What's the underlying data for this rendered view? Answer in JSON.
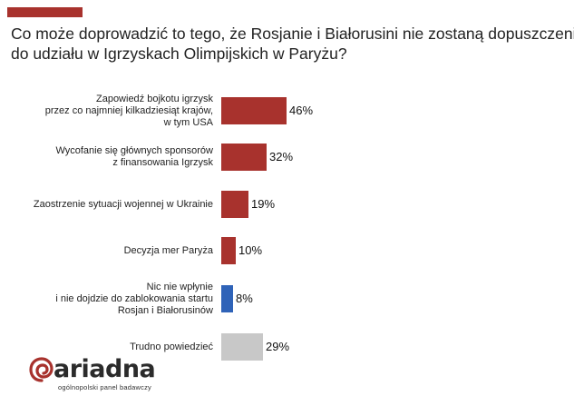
{
  "header": {
    "title_lines": [
      "Co może doprowadzić to tego, że Rosjanie i Białorusini nie zostaną dopuszczeni",
      "do udziału w Igrzyskach Olimpijskich w Paryżu?"
    ]
  },
  "colors": {
    "accent": "#a8322d",
    "series_default": "#a8322d",
    "series_highlight": "#2f63b8",
    "series_neutral": "#c8c8c8"
  },
  "chart_data": {
    "type": "bar",
    "orientation": "horizontal",
    "categories": [
      [
        "Zapowiedź bojkotu igrzysk",
        "przez co najmniej kilkadziesiąt krajów,",
        "w tym USA"
      ],
      [
        "Wycofanie się głównych sponsorów",
        "z finansowania Igrzysk"
      ],
      [
        "Zaostrzenie sytuacji wojennej w Ukrainie"
      ],
      [
        "Decyzja mer Paryża"
      ],
      [
        "Nic nie wpłynie",
        "i nie dojdzie do zablokowania startu",
        "Rosjan i Białorusinów"
      ],
      [
        "Trudno powiedzieć"
      ]
    ],
    "values": [
      46,
      32,
      19,
      10,
      8,
      29
    ],
    "value_labels": [
      "46%",
      "32%",
      "19%",
      "10%",
      "8%",
      "29%"
    ],
    "bar_colors": [
      "#a8322d",
      "#a8322d",
      "#a8322d",
      "#a8322d",
      "#2f63b8",
      "#c8c8c8"
    ],
    "unit": "%",
    "grid": false,
    "legend": "none"
  },
  "branding": {
    "name": "ariadna",
    "tagline": "ogólnopolski panel badawczy",
    "icon": "spiral-logo-icon"
  }
}
